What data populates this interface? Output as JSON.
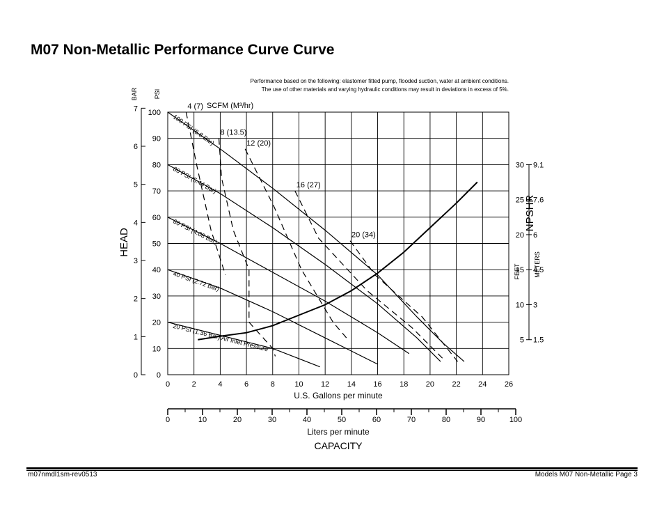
{
  "page": {
    "title": "M07 Non-Metallic Performance Curve Curve",
    "note_line1": "Performance based on the following: elastomer fitted pump, flooded suction, water at ambient conditions.",
    "note_line2": "The use of other materials and varying hydraulic conditions may result in deviations in excess of 5%.",
    "footer_left": "m07nmdl1sm-rev0513",
    "footer_right": "Models M07 Non-Metallic Page 3"
  },
  "chart_data": {
    "type": "line",
    "title": "",
    "xlabel": "U.S. Gallons per minute",
    "xlabel_secondary": "Liters per minute",
    "capacity_label": "CAPACITY",
    "ylabel": "HEAD",
    "ylabel_left_units": "BAR",
    "ylabel_right_units": "PSI",
    "npshr_label": "NPSHR",
    "npshr_units_feet": "FEET",
    "npshr_units_meters": "METERS",
    "scfm_label": "SCFM (M³/hr)",
    "x_range": [
      0,
      26
    ],
    "y_range_psi": [
      0,
      100
    ],
    "x_ticks": [
      "0",
      "2",
      "4",
      "6",
      "8",
      "10",
      "12",
      "14",
      "16",
      "18",
      "20",
      "22",
      "24",
      "26"
    ],
    "liters_ticks": [
      "0",
      "10",
      "20",
      "30",
      "40",
      "50",
      "60",
      "70",
      "80",
      "90",
      "100"
    ],
    "psi_ticks": [
      "0",
      "10",
      "20",
      "30",
      "40",
      "50",
      "60",
      "70",
      "80",
      "90",
      "100"
    ],
    "bar_ticks": [
      "0",
      "1",
      "2",
      "3",
      "4",
      "5",
      "6",
      "7"
    ],
    "npshr_feet_ticks": [
      "5",
      "10",
      "15",
      "20",
      "25",
      "30"
    ],
    "npshr_meters_ticks": [
      "1.5",
      "3",
      "4.5",
      "6",
      "7.6",
      "9.1"
    ],
    "grid": true,
    "pressure_curves": [
      {
        "label": "100 PSI (6.8 Bar)",
        "points": [
          [
            0,
            100
          ],
          [
            4,
            86
          ],
          [
            8,
            71
          ],
          [
            12,
            55
          ],
          [
            16,
            38
          ],
          [
            19,
            22
          ],
          [
            21,
            12
          ],
          [
            22.6,
            5
          ]
        ]
      },
      {
        "label": "80 PSI (5.44 Bar)",
        "points": [
          [
            0,
            80
          ],
          [
            4,
            69
          ],
          [
            8,
            56
          ],
          [
            12,
            42
          ],
          [
            16,
            27
          ],
          [
            19,
            14
          ],
          [
            20.8,
            5
          ]
        ]
      },
      {
        "label": "60 PSI (4.08 Bar)",
        "points": [
          [
            0,
            60
          ],
          [
            4,
            50
          ],
          [
            8,
            39
          ],
          [
            12,
            28
          ],
          [
            16,
            16
          ],
          [
            18.4,
            8
          ]
        ]
      },
      {
        "label": "40 PSI (2.72 Bar)",
        "points": [
          [
            0,
            40
          ],
          [
            4,
            33
          ],
          [
            8,
            24
          ],
          [
            12,
            14
          ],
          [
            16,
            4
          ]
        ]
      },
      {
        "label": "20 PSI (1.36 Bar) Air Inlet Pressure",
        "points": [
          [
            0,
            20
          ],
          [
            4,
            15
          ],
          [
            8,
            10
          ],
          [
            11.6,
            3
          ]
        ]
      }
    ],
    "scfm_curves": [
      {
        "label": "4 (7)",
        "points": [
          [
            1.4,
            100
          ],
          [
            2.2,
            80
          ],
          [
            3.3,
            55
          ],
          [
            4.4,
            38
          ]
        ]
      },
      {
        "label": "8 (13.5)",
        "points": [
          [
            3.9,
            90
          ],
          [
            4.1,
            75
          ],
          [
            5,
            55
          ],
          [
            6.2,
            40
          ],
          [
            6.2,
            20
          ],
          [
            8,
            10
          ],
          [
            8.2,
            7
          ]
        ]
      },
      {
        "label": "12 (20)",
        "points": [
          [
            5.9,
            86
          ],
          [
            8.1,
            64
          ],
          [
            10.2,
            40
          ],
          [
            12.6,
            20
          ],
          [
            13.8,
            13
          ]
        ]
      },
      {
        "label": "16 (27)",
        "points": [
          [
            9.7,
            70
          ],
          [
            11.5,
            52
          ],
          [
            15.2,
            32
          ],
          [
            18.6,
            18
          ],
          [
            21,
            6
          ]
        ]
      },
      {
        "label": "20 (34)",
        "points": [
          [
            13.9,
            51
          ],
          [
            15.8,
            38
          ],
          [
            19.4,
            22
          ],
          [
            22.1,
            5
          ]
        ]
      }
    ],
    "npshr_curve": {
      "npshr_range_feet": [
        0,
        37.5
      ],
      "points": [
        [
          2.3,
          5
        ],
        [
          4,
          5.5
        ],
        [
          6,
          6
        ],
        [
          8,
          7
        ],
        [
          10,
          8.5
        ],
        [
          12,
          10
        ],
        [
          14,
          12
        ],
        [
          16,
          14.5
        ],
        [
          18,
          17.5
        ],
        [
          20,
          21
        ],
        [
          22,
          24.5
        ],
        [
          23.6,
          27.5
        ]
      ]
    }
  }
}
